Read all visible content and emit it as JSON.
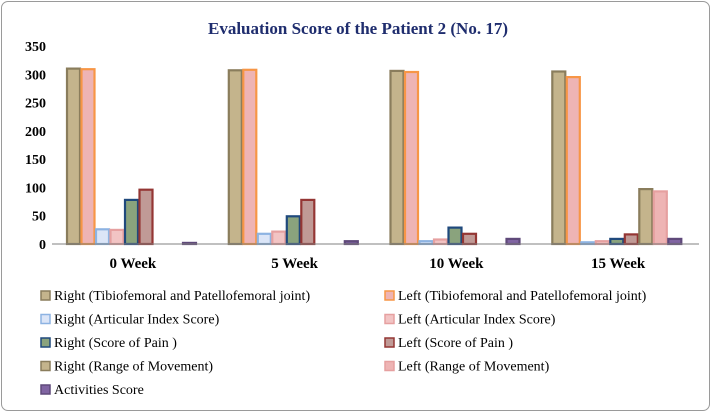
{
  "chart_data": {
    "type": "bar",
    "title": "Evaluation Score of the Patient 2 (No. 17)",
    "categories": [
      "0 Week",
      "5 Week",
      "10 Week",
      "15 Week"
    ],
    "ylim": [
      0,
      350
    ],
    "yticks": [
      "0",
      "50",
      "100",
      "150",
      "200",
      "250",
      "300",
      "350"
    ],
    "grid": false,
    "legend_position": "bottom",
    "series": [
      {
        "name": "Right (Tibiofemoral and Patellofemoral joint)",
        "values": [
          310,
          307,
          306,
          305
        ],
        "color": "#c4b48c",
        "edge": "#8a7d5c"
      },
      {
        "name": "Left (Tibiofemoral and Patellofemoral joint)",
        "values": [
          309,
          308,
          304,
          295
        ],
        "color": "#eeb4b4",
        "edge": "#f79646"
      },
      {
        "name": "Right (Articular Index Score)",
        "values": [
          26,
          18,
          5,
          3
        ],
        "color": "#dbe5f7",
        "edge": "#8db3e2"
      },
      {
        "name": "Left (Articular Index Score)",
        "values": [
          25,
          22,
          8,
          5
        ],
        "color": "#f2c4c4",
        "edge": "#e6a0a0"
      },
      {
        "name": "Right (Score of Pain )",
        "values": [
          78,
          49,
          29,
          9
        ],
        "color": "#8aa37d",
        "edge": "#1f497d"
      },
      {
        "name": "Left (Score of Pain )",
        "values": [
          96,
          78,
          18,
          17
        ],
        "color": "#c09a96",
        "edge": "#943634"
      },
      {
        "name": "Right (Range of Movement)",
        "values": [
          0,
          0,
          0,
          97
        ],
        "color": "#c4b48c",
        "edge": "#8a7d5c"
      },
      {
        "name": "Left  (Range of Movement)",
        "values": [
          0,
          0,
          0,
          93
        ],
        "color": "#eeb4b4",
        "edge": "#e6a0a0"
      },
      {
        "name": "Activities Score",
        "values": [
          2,
          5,
          9,
          9
        ],
        "color": "#8064a2",
        "edge": "#5f497a"
      }
    ]
  }
}
